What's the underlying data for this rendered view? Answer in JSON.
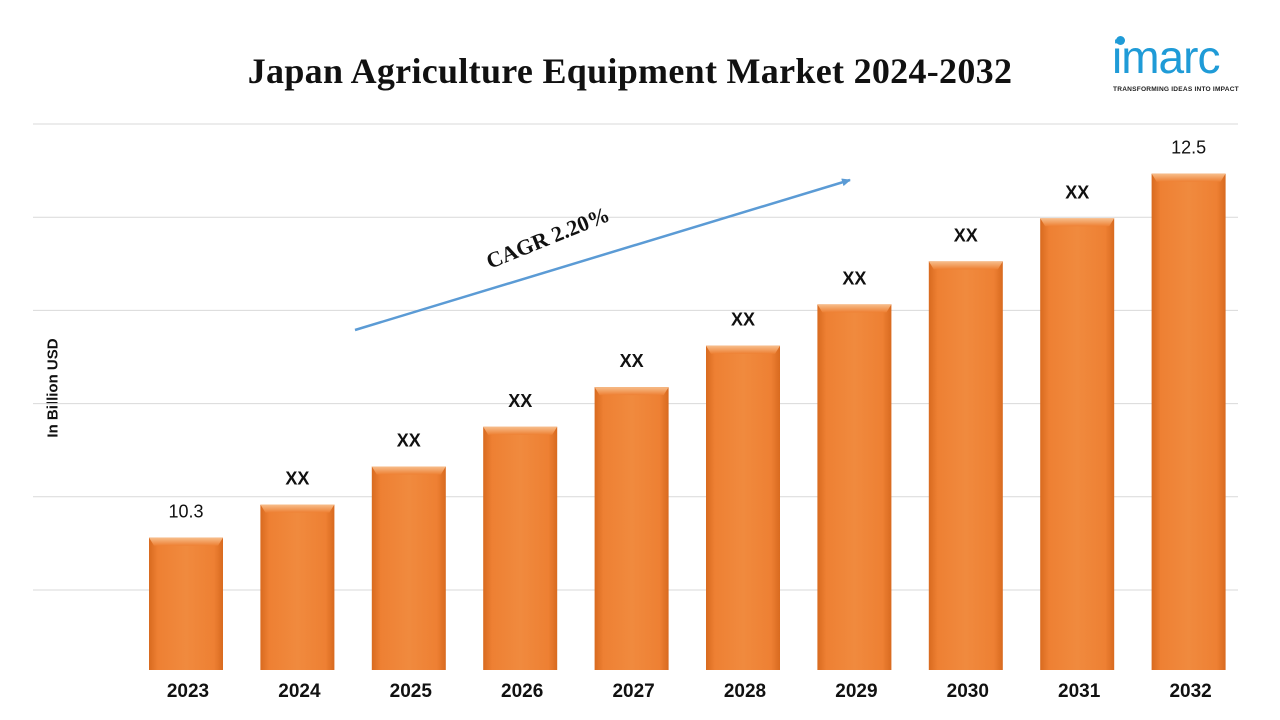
{
  "title": "Japan Agriculture Equipment Market 2024-2032",
  "logo": {
    "word": "imarc",
    "tagline": "TRANSFORMING IDEAS INTO IMPACT"
  },
  "annotation": {
    "text": "CAGR 2.20%"
  },
  "colors": {
    "bar": "#ED7D31",
    "bar_top": "#F5B27A",
    "arrow": "#5B9BD5",
    "grid": "#D9D9D9",
    "logo": "#1f9bd7"
  },
  "chart_data": {
    "type": "bar",
    "title": "Japan Agriculture Equipment Market 2024-2032",
    "xlabel": "",
    "ylabel": "In Billion USD",
    "categories": [
      "2023",
      "2024",
      "2025",
      "2026",
      "2027",
      "2028",
      "2029",
      "2030",
      "2031",
      "2032"
    ],
    "values": [
      10.3,
      10.5,
      10.73,
      10.97,
      11.21,
      11.46,
      11.71,
      11.97,
      12.23,
      12.5
    ],
    "data_labels": [
      "10.3",
      "XX",
      "XX",
      "XX",
      "XX",
      "XX",
      "XX",
      "XX",
      "XX",
      "12.5"
    ],
    "ylim": [
      9.5,
      12.8
    ],
    "grid": true,
    "legend": "none"
  }
}
